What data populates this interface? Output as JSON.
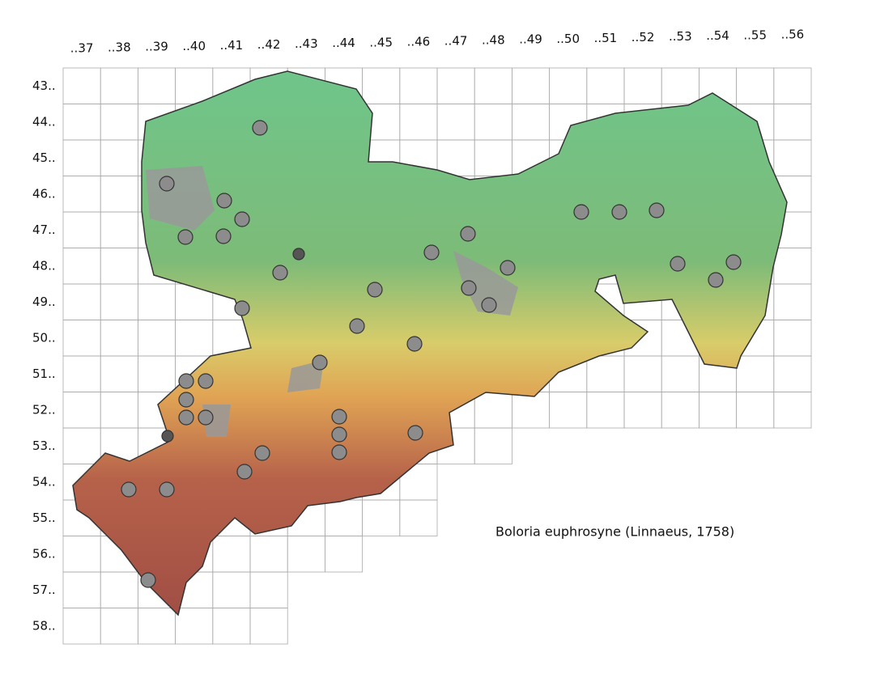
{
  "columns": [
    "..37",
    "..38",
    "..39",
    "..40",
    "..41",
    "..42",
    "..43",
    "..44",
    "..45",
    "..46",
    "..47",
    "..48",
    "..49",
    "..50",
    "..51",
    "..52",
    "..53",
    "..54",
    "..55",
    "..56"
  ],
  "rows": [
    "43..",
    "44..",
    "45..",
    "46..",
    "47..",
    "48..",
    "49..",
    "50..",
    "51..",
    "52..",
    "53..",
    "54..",
    "55..",
    "56..",
    "57..",
    "58.."
  ],
  "species": "Boloria euphrosyne (Linnaeus, 1758)"
}
